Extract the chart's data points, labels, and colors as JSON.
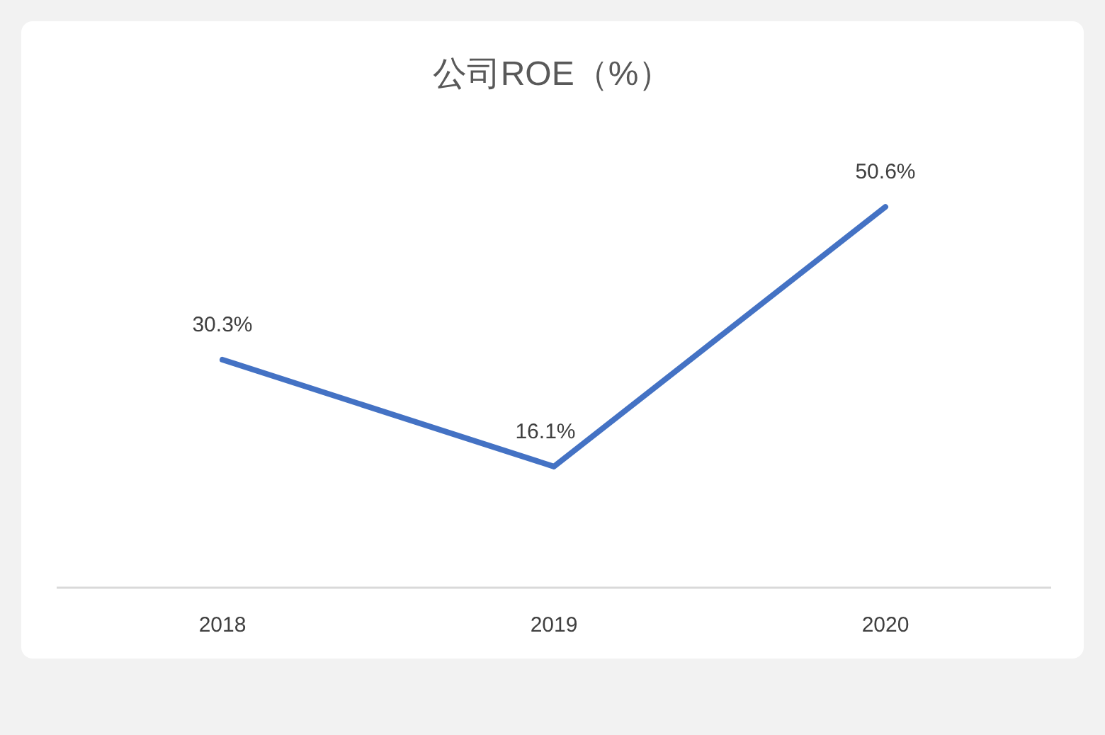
{
  "chart_data": {
    "type": "line",
    "title": "公司ROE（%）",
    "categories": [
      "2018",
      "2019",
      "2020"
    ],
    "series": [
      {
        "color": "#4472c4",
        "values": [
          30.3,
          16.1,
          50.6
        ],
        "value_labels": [
          "30.3%",
          "16.1%",
          "50.6%"
        ]
      }
    ],
    "marker": "none",
    "line_style": "solid"
  }
}
